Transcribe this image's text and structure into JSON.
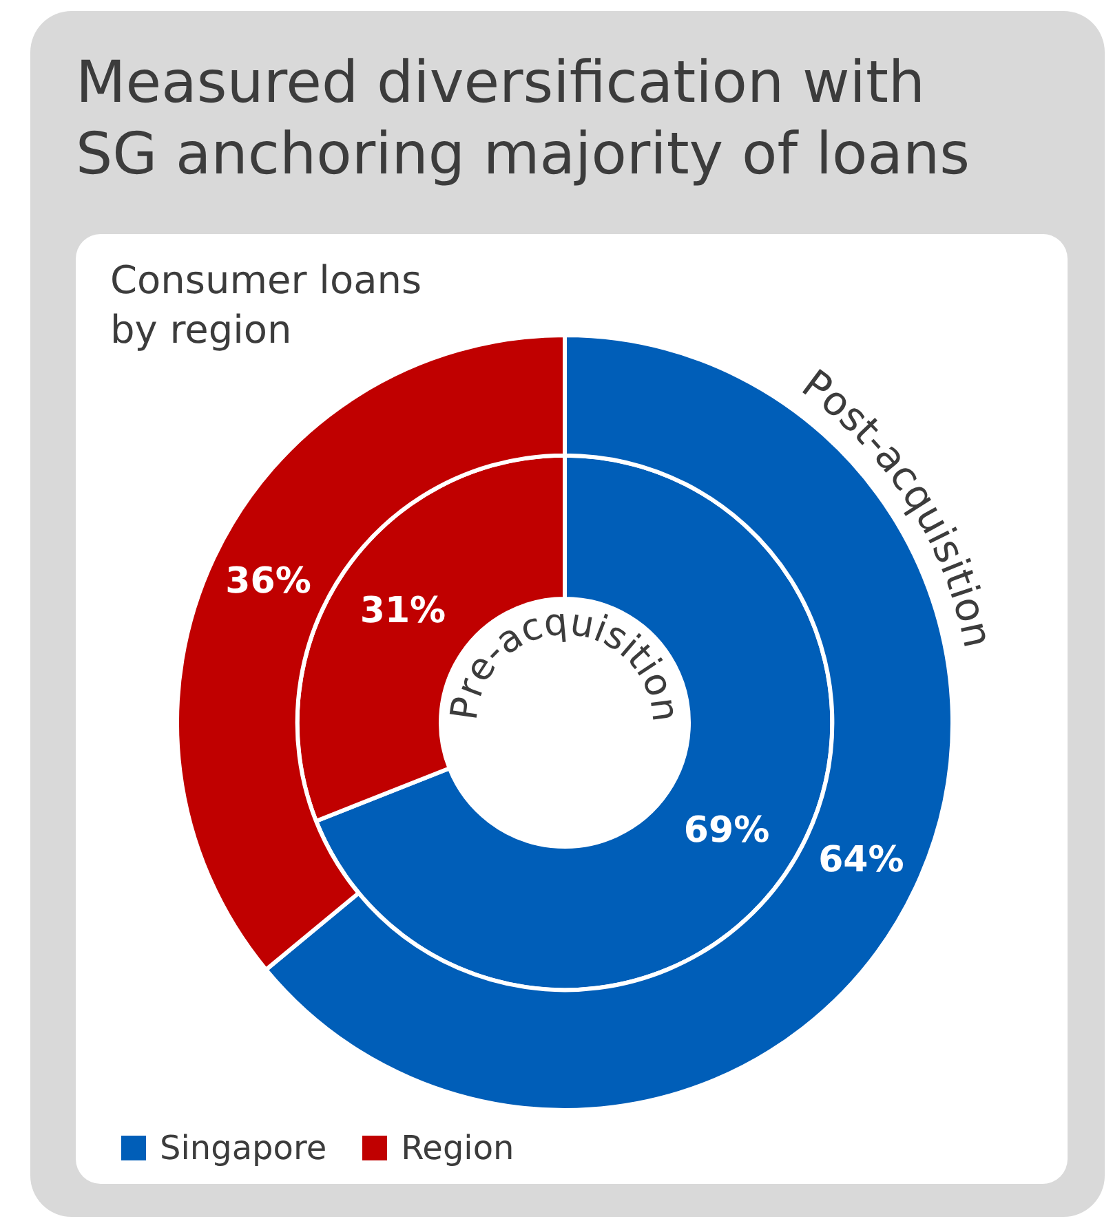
{
  "chart_data": {
    "type": "donut",
    "title": "Measured diversification with SG anchoring majority of loans",
    "subtitle": "Consumer loans by region",
    "categories": [
      "Singapore",
      "Region"
    ],
    "colors": [
      "#005eb8",
      "#c00000"
    ],
    "series": [
      {
        "name": "Pre-acquisition",
        "values": [
          69,
          31
        ],
        "value_labels": [
          "69%",
          "31%"
        ]
      },
      {
        "name": "Post-acquisition",
        "values": [
          64,
          36
        ],
        "value_labels": [
          "64%",
          "36%"
        ]
      }
    ],
    "legend": "bottom left"
  }
}
